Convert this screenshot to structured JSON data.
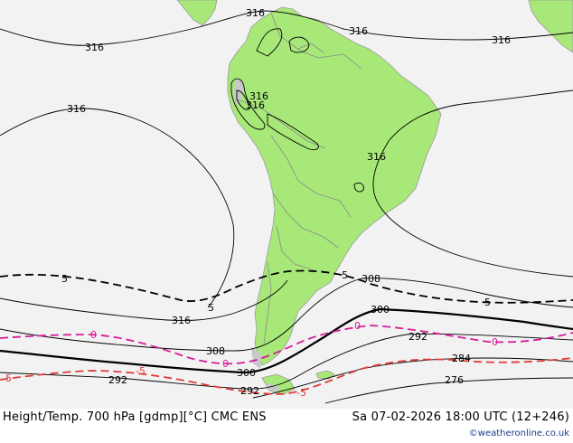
{
  "footer": {
    "title_left": "Height/Temp. 700 hPa [gdmp][°C] CMC ENS",
    "title_right": "Sa 07-02-2026 18:00 UTC (12+246)",
    "credit": "©weatheronline.co.uk"
  },
  "colors": {
    "ocean": "#f2f2f2",
    "land": "#a8e878",
    "land_grey": "#c8c8c8",
    "border": "#8c8c8c",
    "height_contour": "#000000",
    "temp_zero": "#d81b9a",
    "temp_minus5": "#e03c3c",
    "temp_plus5": "#000000"
  },
  "labels": {
    "h316_top": "316",
    "h316_a": "316",
    "h316_b": "316",
    "h316_c": "316",
    "h316_d": "316",
    "h316_e": "316",
    "h316_f": "316",
    "h316_g": "316",
    "h316_h": "316",
    "h308_right": "308",
    "h308_left": "308",
    "h300_right": "300",
    "h300_left": "300",
    "h292_right": "292",
    "h292_left": "292",
    "h292_bottom": "292",
    "h284": "284",
    "h276": "276",
    "t5_left": "5",
    "t5_mid": "5",
    "t5_center": "5",
    "t5_right": "5",
    "t0_left": "0",
    "t0_mid": "0",
    "t0_center": "0",
    "t0_right": "0",
    "tm5_left": "-5",
    "tm5_mid": "-5",
    "tm5_right": "-5"
  }
}
